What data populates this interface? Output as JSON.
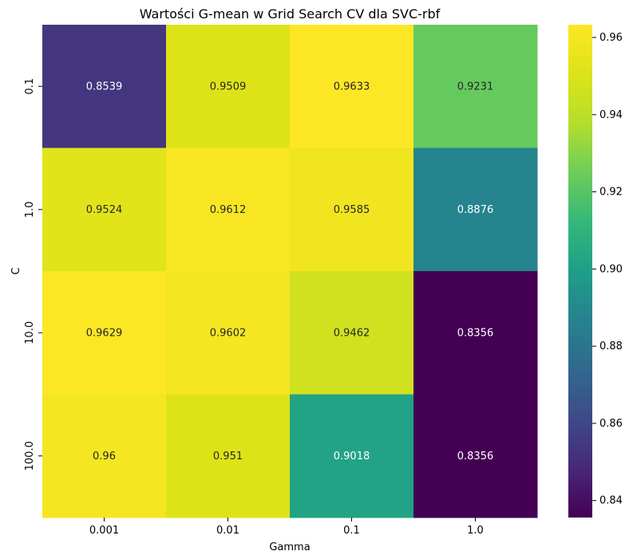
{
  "chart_data": {
    "type": "heatmap",
    "title": "Wartości G-mean w Grid Search CV dla SVC-rbf",
    "xlabel": "Gamma",
    "ylabel": "C",
    "x_categories": [
      "0.001",
      "0.01",
      "0.1",
      "1.0"
    ],
    "y_categories": [
      "0.1",
      "1.0",
      "10.0",
      "100.0"
    ],
    "values": [
      [
        0.8539,
        0.9509,
        0.9633,
        0.9231
      ],
      [
        0.9524,
        0.9612,
        0.9585,
        0.8876
      ],
      [
        0.9629,
        0.9602,
        0.9462,
        0.8356
      ],
      [
        0.96,
        0.951,
        0.9018,
        0.8356
      ]
    ],
    "cell_labels": [
      [
        "0.8539",
        "0.9509",
        "0.9633",
        "0.9231"
      ],
      [
        "0.9524",
        "0.9612",
        "0.9585",
        "0.8876"
      ],
      [
        "0.9629",
        "0.9602",
        "0.9462",
        "0.8356"
      ],
      [
        "0.96",
        "0.951",
        "0.9018",
        "0.8356"
      ]
    ],
    "colormap": "viridis",
    "color_range": [
      0.8356,
      0.9633
    ],
    "colorbar_ticks": [
      0.84,
      0.86,
      0.88,
      0.9,
      0.92,
      0.94,
      0.96
    ],
    "colorbar_tick_labels": [
      "0.84",
      "0.86",
      "0.88",
      "0.90",
      "0.92",
      "0.94",
      "0.96"
    ]
  }
}
